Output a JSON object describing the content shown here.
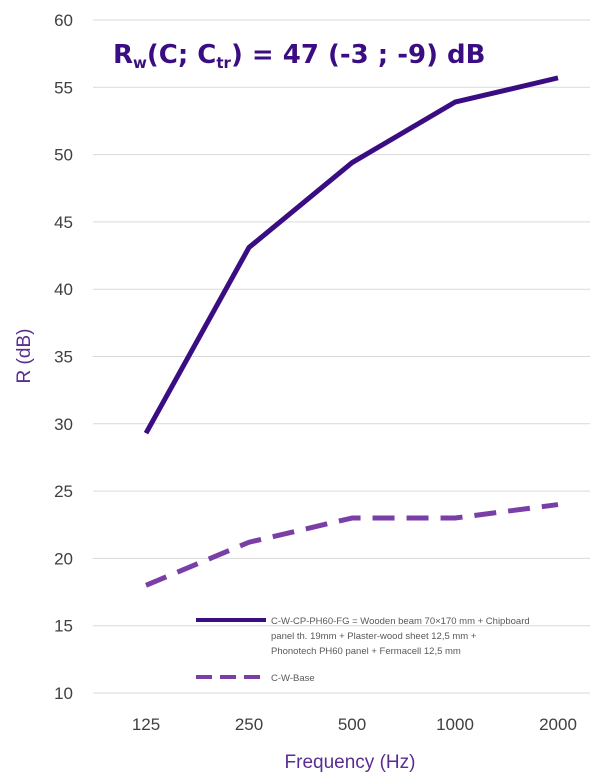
{
  "chart_data": {
    "type": "line",
    "title": "",
    "annotation": {
      "main": "R",
      "main_sub": "w",
      "open": "(C; C",
      "ctr_sub": "tr",
      "rest": ") = 47 (-3 ; -9) dB"
    },
    "xlabel": "Frequency (Hz)",
    "ylabel": "R (dB)",
    "categories": [
      "125",
      "250",
      "500",
      "1000",
      "2000"
    ],
    "ylim": [
      10,
      60
    ],
    "yticks": [
      "10",
      "15",
      "20",
      "25",
      "30",
      "35",
      "40",
      "45",
      "50",
      "55",
      "60"
    ],
    "grid": true,
    "legend_position": "bottom-right",
    "series": [
      {
        "name_lines": [
          "C-W-CP-PH60-FG = Wooden beam 70×170 mm + Chipboard",
          "panel th. 19mm + Plaster-wood sheet 12,5 mm +",
          "Phonotech PH60 panel + Fermacell 12,5 mm"
        ],
        "values": [
          29.3,
          43.1,
          49.4,
          53.9,
          55.7
        ],
        "style": "solid",
        "color": "#3b0d82"
      },
      {
        "name_lines": [
          "C-W-Base"
        ],
        "values": [
          18.0,
          21.2,
          23.0,
          23.0,
          24.0
        ],
        "style": "dashed",
        "color": "#7a3fa6"
      }
    ]
  }
}
